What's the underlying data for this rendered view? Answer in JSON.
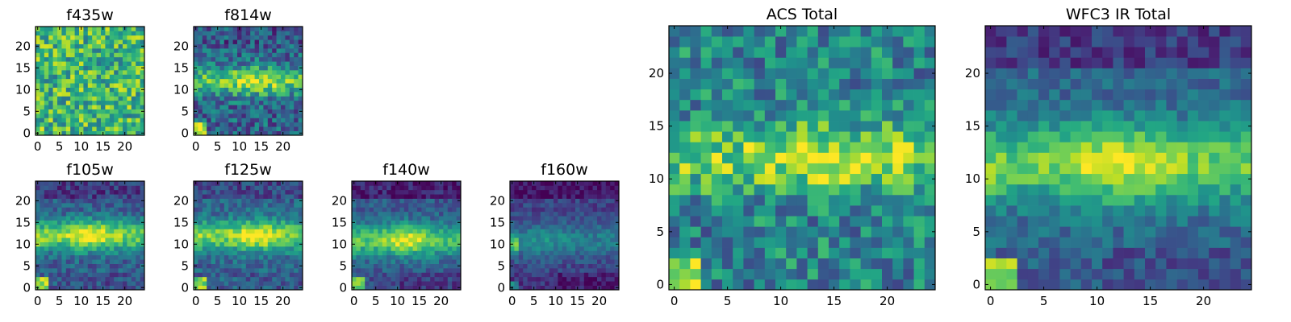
{
  "chart_data": {
    "type": "heatmap",
    "colormap": "viridis",
    "grid": false,
    "panels": [
      {
        "id": "f435w",
        "title": "f435w",
        "cols": 25,
        "rows": 25,
        "xticks": [
          0,
          5,
          10,
          15,
          20
        ],
        "yticks": [
          0,
          5,
          10,
          15,
          20
        ],
        "xlim": [
          0,
          25
        ],
        "ylim": [
          0,
          25
        ],
        "pattern": {
          "base": 0.66,
          "noise": 0.28,
          "band": 0.0,
          "band_center": 12,
          "band_width": 3,
          "core": 0.0,
          "core_x": 12,
          "corner": 0.25,
          "corner_size": 2,
          "left_edge": 0.0,
          "top_dark": 0.0,
          "bottom_dark": 0.0,
          "seed": 11
        }
      },
      {
        "id": "f814w",
        "title": "f814w",
        "cols": 25,
        "rows": 25,
        "xticks": [
          0,
          5,
          10,
          15,
          20
        ],
        "yticks": [
          0,
          5,
          10,
          15,
          20
        ],
        "xlim": [
          0,
          25
        ],
        "ylim": [
          0,
          25
        ],
        "pattern": {
          "base": 0.32,
          "noise": 0.22,
          "band": 0.42,
          "band_center": 12,
          "band_width": 3.2,
          "core": 0.22,
          "core_x": 13,
          "corner": 0.6,
          "corner_size": 3,
          "left_edge": 0.0,
          "top_dark": 0.05,
          "bottom_dark": 0.0,
          "seed": 23
        }
      },
      {
        "id": "f105w",
        "title": "f105w",
        "cols": 25,
        "rows": 25,
        "xticks": [
          0,
          5,
          10,
          15,
          20
        ],
        "yticks": [
          0,
          5,
          10,
          15,
          20
        ],
        "xlim": [
          0,
          25
        ],
        "ylim": [
          0,
          25
        ],
        "pattern": {
          "base": 0.3,
          "noise": 0.14,
          "band": 0.48,
          "band_center": 12,
          "band_width": 3.4,
          "core": 0.25,
          "core_x": 12,
          "corner": 0.55,
          "corner_size": 3,
          "left_edge": 0.1,
          "top_dark": 0.12,
          "bottom_dark": 0.05,
          "seed": 37
        }
      },
      {
        "id": "f125w",
        "title": "f125w",
        "cols": 25,
        "rows": 25,
        "xticks": [
          0,
          5,
          10,
          15,
          20
        ],
        "yticks": [
          0,
          5,
          10,
          15,
          20
        ],
        "xlim": [
          0,
          25
        ],
        "ylim": [
          0,
          25
        ],
        "pattern": {
          "base": 0.32,
          "noise": 0.14,
          "band": 0.46,
          "band_center": 12,
          "band_width": 3.4,
          "core": 0.25,
          "core_x": 14,
          "corner": 0.5,
          "corner_size": 3,
          "left_edge": 0.1,
          "top_dark": 0.1,
          "bottom_dark": 0.05,
          "seed": 41
        }
      },
      {
        "id": "f140w",
        "title": "f140w",
        "cols": 25,
        "rows": 25,
        "xticks": [
          0,
          5,
          10,
          15,
          20
        ],
        "yticks": [
          0,
          5,
          10,
          15,
          20
        ],
        "xlim": [
          0,
          25
        ],
        "ylim": [
          0,
          25
        ],
        "pattern": {
          "base": 0.28,
          "noise": 0.12,
          "band": 0.44,
          "band_center": 11,
          "band_width": 3.6,
          "core": 0.25,
          "core_x": 12,
          "corner": 0.55,
          "corner_size": 3,
          "left_edge": 0.12,
          "top_dark": 0.18,
          "bottom_dark": 0.1,
          "seed": 53
        }
      },
      {
        "id": "f160w",
        "title": "f160w",
        "cols": 25,
        "rows": 25,
        "xticks": [
          0,
          5,
          10,
          15,
          20
        ],
        "yticks": [
          0,
          5,
          10,
          15,
          20
        ],
        "xlim": [
          0,
          25
        ],
        "ylim": [
          0,
          25
        ],
        "pattern": {
          "base": 0.2,
          "noise": 0.1,
          "band": 0.22,
          "band_center": 11,
          "band_width": 4,
          "core": 0.08,
          "core_x": 8,
          "corner": 0.3,
          "corner_size": 2,
          "left_edge": 0.35,
          "top_dark": 0.15,
          "bottom_dark": 0.12,
          "seed": 67
        }
      },
      {
        "id": "acs-total",
        "title": "ACS Total",
        "cols": 25,
        "rows": 25,
        "xticks": [
          0,
          5,
          10,
          15,
          20
        ],
        "yticks": [
          0,
          5,
          10,
          15,
          20
        ],
        "xlim": [
          0,
          25
        ],
        "ylim": [
          0,
          25
        ],
        "pattern": {
          "base": 0.45,
          "noise": 0.24,
          "band": 0.35,
          "band_center": 12,
          "band_width": 3,
          "core": 0.18,
          "core_x": 14,
          "corner": 0.45,
          "corner_size": 3,
          "left_edge": 0.0,
          "top_dark": 0.0,
          "bottom_dark": 0.0,
          "seed": 79
        }
      },
      {
        "id": "wfc3-ir-total",
        "title": "WFC3 IR Total",
        "cols": 25,
        "rows": 25,
        "xticks": [
          0,
          5,
          10,
          15,
          20
        ],
        "yticks": [
          0,
          5,
          10,
          15,
          20
        ],
        "xlim": [
          0,
          25
        ],
        "ylim": [
          0,
          25
        ],
        "pattern": {
          "base": 0.33,
          "noise": 0.12,
          "band": 0.42,
          "band_center": 11.5,
          "band_width": 3.6,
          "core": 0.22,
          "core_x": 12,
          "corner": 0.55,
          "corner_size": 3,
          "left_edge": 0.08,
          "top_dark": 0.15,
          "bottom_dark": 0.08,
          "seed": 97
        }
      }
    ]
  }
}
